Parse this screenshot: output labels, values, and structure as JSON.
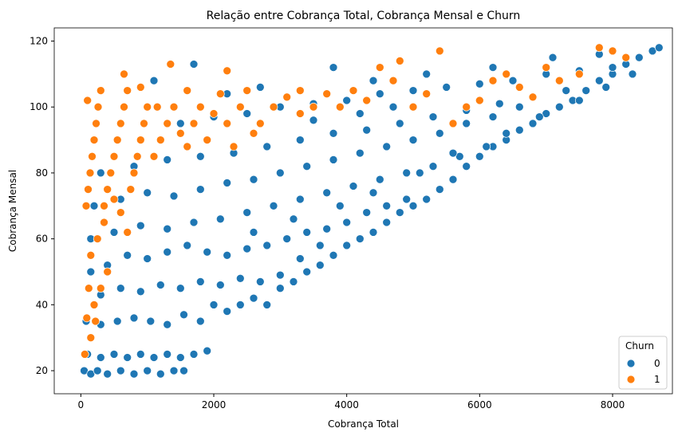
{
  "colors": {
    "series0": "#1f77b4",
    "series1": "#ff7f0e",
    "marker_edge": "#ffffff",
    "axes": "#000000"
  },
  "chart_data": {
    "type": "scatter",
    "title": "Relação entre Cobrança Total, Cobrança Mensal e Churn",
    "xlabel": "Cobrança Total",
    "ylabel": "Cobrança Mensal",
    "xlim": [
      -400,
      8900
    ],
    "ylim": [
      13,
      124
    ],
    "xticks": [
      0,
      2000,
      4000,
      6000,
      8000
    ],
    "yticks": [
      20,
      40,
      60,
      80,
      100,
      120
    ],
    "grid": false,
    "legend": {
      "title": "Churn",
      "placement": "lower-right"
    },
    "series": [
      {
        "name": "0",
        "color": "#1f77b4",
        "points": [
          [
            50,
            20
          ],
          [
            150,
            19
          ],
          [
            250,
            20
          ],
          [
            400,
            19
          ],
          [
            600,
            20
          ],
          [
            800,
            19
          ],
          [
            1000,
            20
          ],
          [
            1200,
            19
          ],
          [
            1400,
            20
          ],
          [
            1550,
            20
          ],
          [
            100,
            25
          ],
          [
            300,
            24
          ],
          [
            500,
            25
          ],
          [
            700,
            24
          ],
          [
            900,
            25
          ],
          [
            1100,
            24
          ],
          [
            1300,
            25
          ],
          [
            1500,
            24
          ],
          [
            1700,
            25
          ],
          [
            1900,
            26
          ],
          [
            80,
            35
          ],
          [
            300,
            34
          ],
          [
            550,
            35
          ],
          [
            800,
            36
          ],
          [
            1050,
            35
          ],
          [
            1300,
            34
          ],
          [
            1550,
            37
          ],
          [
            1800,
            35
          ],
          [
            2000,
            40
          ],
          [
            2200,
            38
          ],
          [
            2400,
            40
          ],
          [
            2600,
            42
          ],
          [
            2800,
            40
          ],
          [
            3000,
            45
          ],
          [
            3200,
            47
          ],
          [
            3400,
            50
          ],
          [
            3600,
            52
          ],
          [
            3800,
            55
          ],
          [
            4000,
            58
          ],
          [
            4200,
            60
          ],
          [
            4400,
            62
          ],
          [
            4600,
            65
          ],
          [
            4800,
            68
          ],
          [
            5000,
            70
          ],
          [
            5200,
            72
          ],
          [
            5400,
            75
          ],
          [
            5600,
            78
          ],
          [
            5800,
            82
          ],
          [
            6000,
            85
          ],
          [
            6200,
            88
          ],
          [
            6400,
            90
          ],
          [
            6600,
            93
          ],
          [
            6800,
            95
          ],
          [
            7000,
            98
          ],
          [
            7200,
            100
          ],
          [
            7400,
            102
          ],
          [
            7600,
            105
          ],
          [
            7800,
            108
          ],
          [
            8000,
            110
          ],
          [
            8200,
            113
          ],
          [
            8400,
            115
          ],
          [
            8600,
            117
          ],
          [
            8700,
            118
          ],
          [
            150,
            50
          ],
          [
            400,
            52
          ],
          [
            700,
            55
          ],
          [
            1000,
            54
          ],
          [
            1300,
            56
          ],
          [
            1600,
            58
          ],
          [
            1900,
            56
          ],
          [
            2200,
            55
          ],
          [
            2500,
            57
          ],
          [
            2800,
            58
          ],
          [
            3100,
            60
          ],
          [
            3400,
            62
          ],
          [
            3700,
            63
          ],
          [
            4000,
            65
          ],
          [
            4300,
            68
          ],
          [
            4600,
            70
          ],
          [
            4900,
            72
          ],
          [
            150,
            60
          ],
          [
            500,
            62
          ],
          [
            900,
            64
          ],
          [
            1300,
            63
          ],
          [
            1700,
            65
          ],
          [
            2100,
            66
          ],
          [
            2500,
            68
          ],
          [
            2900,
            70
          ],
          [
            3300,
            72
          ],
          [
            3700,
            74
          ],
          [
            4100,
            76
          ],
          [
            4500,
            78
          ],
          [
            4900,
            80
          ],
          [
            5300,
            82
          ],
          [
            5700,
            85
          ],
          [
            6100,
            88
          ],
          [
            200,
            70
          ],
          [
            600,
            72
          ],
          [
            1000,
            74
          ],
          [
            1400,
            73
          ],
          [
            1800,
            75
          ],
          [
            2200,
            77
          ],
          [
            2600,
            78
          ],
          [
            3000,
            80
          ],
          [
            3400,
            82
          ],
          [
            3800,
            84
          ],
          [
            4200,
            86
          ],
          [
            4600,
            88
          ],
          [
            5000,
            90
          ],
          [
            5400,
            92
          ],
          [
            5800,
            95
          ],
          [
            6200,
            97
          ],
          [
            6600,
            100
          ],
          [
            300,
            80
          ],
          [
            800,
            82
          ],
          [
            1300,
            84
          ],
          [
            1800,
            85
          ],
          [
            2300,
            86
          ],
          [
            2800,
            88
          ],
          [
            3300,
            90
          ],
          [
            3800,
            92
          ],
          [
            4300,
            93
          ],
          [
            4800,
            95
          ],
          [
            5300,
            97
          ],
          [
            5800,
            99
          ],
          [
            6300,
            101
          ],
          [
            6800,
            103
          ],
          [
            7300,
            105
          ],
          [
            1500,
            95
          ],
          [
            2000,
            97
          ],
          [
            2500,
            98
          ],
          [
            3000,
            100
          ],
          [
            3500,
            101
          ],
          [
            4000,
            102
          ],
          [
            4500,
            104
          ],
          [
            5000,
            105
          ],
          [
            5500,
            106
          ],
          [
            6000,
            107
          ],
          [
            6500,
            108
          ],
          [
            7000,
            110
          ],
          [
            7500,
            111
          ],
          [
            8000,
            112
          ],
          [
            3800,
            112
          ],
          [
            4400,
            108
          ],
          [
            5200,
            110
          ],
          [
            6200,
            112
          ],
          [
            7100,
            115
          ],
          [
            7800,
            116
          ],
          [
            300,
            43
          ],
          [
            600,
            45
          ],
          [
            900,
            44
          ],
          [
            1200,
            46
          ],
          [
            1500,
            45
          ],
          [
            1800,
            47
          ],
          [
            2100,
            46
          ],
          [
            2400,
            48
          ],
          [
            2700,
            47
          ],
          [
            3000,
            49
          ],
          [
            3300,
            54
          ],
          [
            3600,
            58
          ],
          [
            2600,
            62
          ],
          [
            3200,
            66
          ],
          [
            3900,
            70
          ],
          [
            4400,
            74
          ],
          [
            5100,
            80
          ],
          [
            5600,
            86
          ],
          [
            6400,
            92
          ],
          [
            6900,
            97
          ],
          [
            7500,
            102
          ],
          [
            7900,
            106
          ],
          [
            8300,
            110
          ],
          [
            1100,
            108
          ],
          [
            1700,
            113
          ],
          [
            2200,
            104
          ],
          [
            2700,
            106
          ],
          [
            3500,
            96
          ],
          [
            4200,
            98
          ],
          [
            4700,
            100
          ]
        ]
      },
      {
        "name": "1",
        "color": "#ff7f0e",
        "points": [
          [
            60,
            25
          ],
          [
            90,
            36
          ],
          [
            120,
            45
          ],
          [
            150,
            55
          ],
          [
            80,
            70
          ],
          [
            110,
            75
          ],
          [
            140,
            80
          ],
          [
            170,
            85
          ],
          [
            200,
            90
          ],
          [
            230,
            95
          ],
          [
            260,
            100
          ],
          [
            100,
            102
          ],
          [
            350,
            70
          ],
          [
            400,
            75
          ],
          [
            450,
            80
          ],
          [
            500,
            85
          ],
          [
            550,
            90
          ],
          [
            600,
            95
          ],
          [
            650,
            100
          ],
          [
            700,
            105
          ],
          [
            750,
            75
          ],
          [
            800,
            80
          ],
          [
            850,
            85
          ],
          [
            900,
            90
          ],
          [
            950,
            95
          ],
          [
            1000,
            100
          ],
          [
            1100,
            85
          ],
          [
            1200,
            90
          ],
          [
            1300,
            95
          ],
          [
            1400,
            100
          ],
          [
            1500,
            92
          ],
          [
            1600,
            88
          ],
          [
            1700,
            95
          ],
          [
            1800,
            100
          ],
          [
            1900,
            90
          ],
          [
            2000,
            98
          ],
          [
            2100,
            104
          ],
          [
            2200,
            95
          ],
          [
            2300,
            88
          ],
          [
            2400,
            100
          ],
          [
            2500,
            105
          ],
          [
            2700,
            95
          ],
          [
            2900,
            100
          ],
          [
            3100,
            103
          ],
          [
            3300,
            98
          ],
          [
            3500,
            100
          ],
          [
            3700,
            104
          ],
          [
            3900,
            100
          ],
          [
            4100,
            105
          ],
          [
            4300,
            102
          ],
          [
            4500,
            112
          ],
          [
            4700,
            108
          ],
          [
            5000,
            100
          ],
          [
            5200,
            104
          ],
          [
            5400,
            117
          ],
          [
            5600,
            95
          ],
          [
            5800,
            100
          ],
          [
            6000,
            102
          ],
          [
            6200,
            108
          ],
          [
            6400,
            110
          ],
          [
            6600,
            106
          ],
          [
            6800,
            103
          ],
          [
            7000,
            112
          ],
          [
            7200,
            108
          ],
          [
            7500,
            110
          ],
          [
            7800,
            118
          ],
          [
            8000,
            117
          ],
          [
            8200,
            115
          ],
          [
            200,
            40
          ],
          [
            300,
            45
          ],
          [
            400,
            50
          ],
          [
            250,
            60
          ],
          [
            350,
            65
          ],
          [
            500,
            72
          ],
          [
            150,
            30
          ],
          [
            220,
            35
          ],
          [
            600,
            68
          ],
          [
            700,
            62
          ],
          [
            1350,
            113
          ],
          [
            650,
            110
          ],
          [
            300,
            105
          ],
          [
            900,
            106
          ],
          [
            1150,
            100
          ],
          [
            1600,
            105
          ],
          [
            2200,
            111
          ],
          [
            3300,
            105
          ],
          [
            4800,
            114
          ],
          [
            2600,
            92
          ]
        ]
      }
    ]
  }
}
